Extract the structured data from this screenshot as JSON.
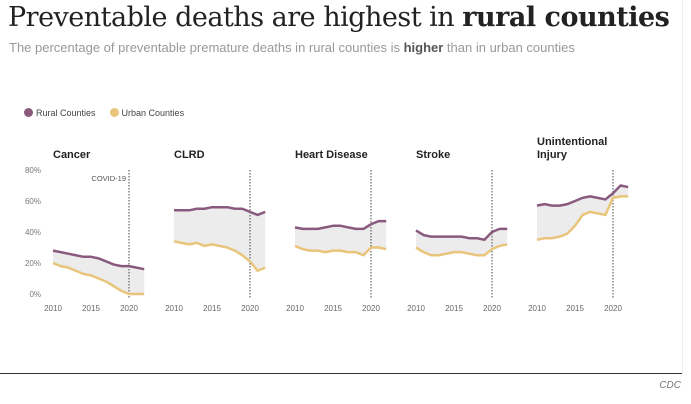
{
  "title_regular": "Preventable deaths are highest in ",
  "title_bold": "rural counties",
  "subtitle_pre": "The percentage of preventable premature deaths in rural counties is ",
  "subtitle_bold": "higher",
  "subtitle_post": " than in urban counties",
  "source": "CDC",
  "colors": {
    "rural": "#8a5a7e",
    "urban": "#e8c57a",
    "band": "#ececec"
  },
  "chart_data": {
    "type": "line",
    "legend": [
      "Rural Counties",
      "Urban Counties"
    ],
    "legend_placement": "top-left",
    "x": [
      2010,
      2011,
      2012,
      2013,
      2014,
      2015,
      2016,
      2017,
      2018,
      2019,
      2020,
      2021,
      2022
    ],
    "x_ticks": [
      "2010",
      "2015",
      "2020"
    ],
    "y_ticks": [
      "0%",
      "20%",
      "40%",
      "60%",
      "80%"
    ],
    "ylim": [
      0,
      80
    ],
    "annotation": "COVID-19",
    "annotation_x": 2020,
    "panels": [
      {
        "title": "Cancer",
        "rural": [
          28,
          27,
          26,
          25,
          24,
          24,
          23,
          21,
          19,
          18,
          18,
          17,
          16
        ],
        "urban": [
          20,
          18,
          17,
          15,
          13,
          12,
          10,
          8,
          5,
          2,
          0,
          0,
          0
        ]
      },
      {
        "title": "CLRD",
        "rural": [
          54,
          54,
          54,
          55,
          55,
          56,
          56,
          56,
          55,
          55,
          53,
          51,
          53
        ],
        "urban": [
          34,
          33,
          32,
          33,
          31,
          32,
          31,
          30,
          28,
          25,
          21,
          15,
          17
        ]
      },
      {
        "title": "Heart Disease",
        "rural": [
          43,
          42,
          42,
          42,
          43,
          44,
          44,
          43,
          42,
          42,
          45,
          47,
          47
        ],
        "urban": [
          31,
          29,
          28,
          28,
          27,
          28,
          28,
          27,
          27,
          25,
          30,
          30,
          29
        ]
      },
      {
        "title": "Stroke",
        "rural": [
          41,
          38,
          37,
          37,
          37,
          37,
          37,
          36,
          36,
          35,
          40,
          42,
          42
        ],
        "urban": [
          30,
          27,
          25,
          25,
          26,
          27,
          27,
          26,
          25,
          25,
          29,
          31,
          32
        ]
      },
      {
        "title": "Unintentional Injury",
        "rural": [
          57,
          58,
          57,
          57,
          58,
          60,
          62,
          63,
          62,
          61,
          65,
          70,
          69
        ],
        "urban": [
          35,
          36,
          36,
          37,
          39,
          44,
          51,
          53,
          52,
          51,
          62,
          63,
          63
        ]
      }
    ]
  }
}
